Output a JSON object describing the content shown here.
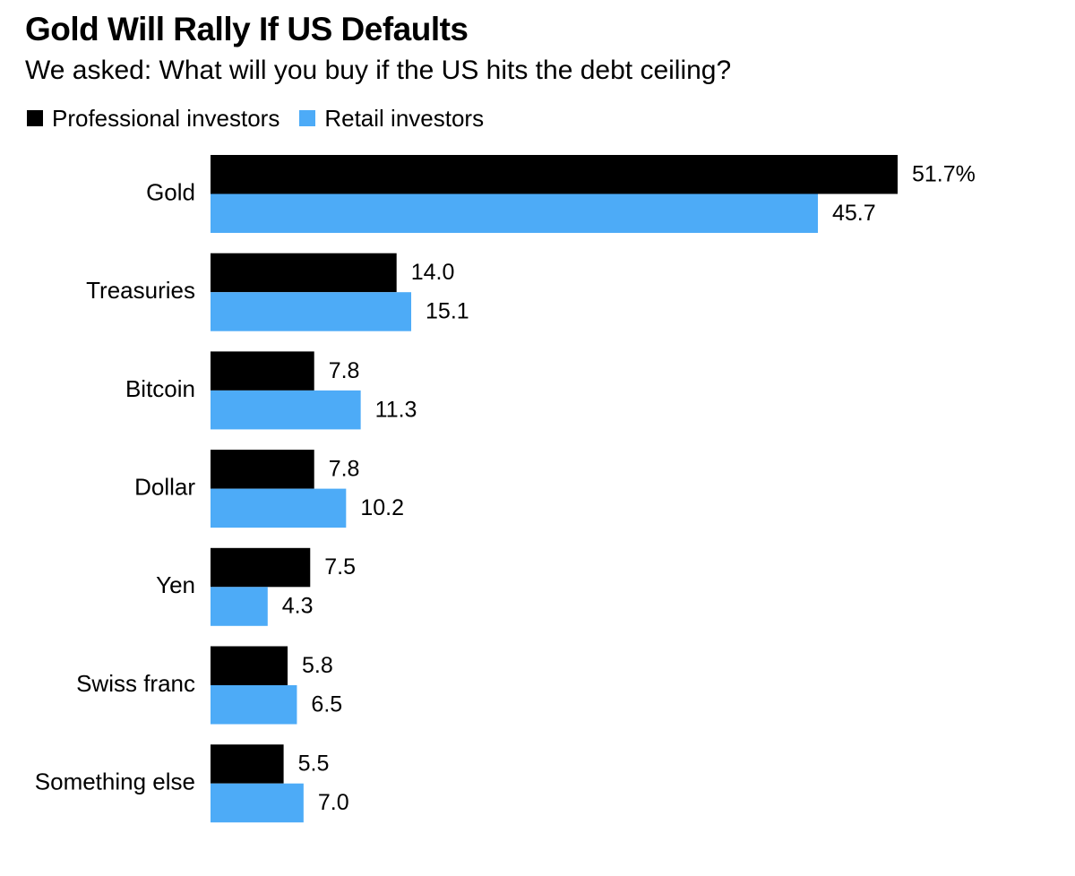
{
  "title": "Gold Will Rally If US Defaults",
  "subtitle": "We asked: What will you buy if the US hits the debt ceiling?",
  "colors": {
    "professional": "#000000",
    "retail": "#4dabf7"
  },
  "chart_data": {
    "type": "bar",
    "orientation": "horizontal",
    "title": "Gold Will Rally If US Defaults",
    "subtitle": "We asked: What will you buy if the US hits the debt ceiling?",
    "categories": [
      "Gold",
      "Treasuries",
      "Bitcoin",
      "Dollar",
      "Yen",
      "Swiss franc",
      "Something else"
    ],
    "series": [
      {
        "name": "Professional investors",
        "values": [
          51.7,
          14.0,
          7.8,
          7.8,
          7.5,
          5.8,
          5.5
        ],
        "labels": [
          "51.7%",
          "14.0",
          "7.8",
          "7.8",
          "7.5",
          "5.8",
          "5.5"
        ]
      },
      {
        "name": "Retail investors",
        "values": [
          45.7,
          15.1,
          11.3,
          10.2,
          4.3,
          6.5,
          7.0
        ],
        "labels": [
          "45.7",
          "15.1",
          "11.3",
          "10.2",
          "4.3",
          "6.5",
          "7.0"
        ]
      }
    ],
    "xlim": [
      0,
      55
    ],
    "xlabel": "",
    "ylabel": "",
    "unit": "%",
    "grid": false,
    "legend_position": "top-left"
  }
}
